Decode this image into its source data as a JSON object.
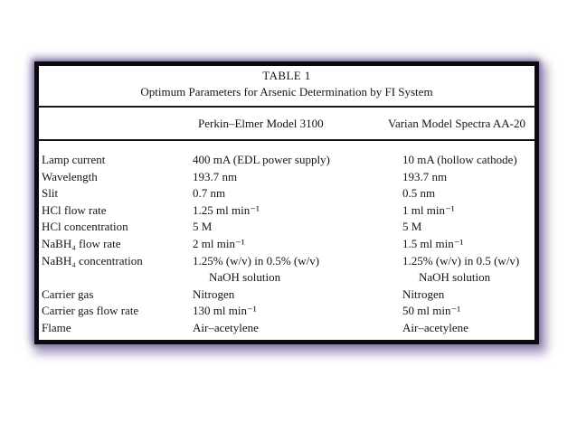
{
  "table": {
    "title": "TABLE 1",
    "subtitle": "Optimum Parameters for Arsenic Determination by FI System",
    "columns": {
      "instrument1": "Perkin–Elmer Model 3100",
      "instrument2": "Varian Model Spectra AA-20"
    },
    "rows": [
      {
        "param": "Lamp current",
        "pe": "400 mA (EDL power supply)",
        "varian": "10 mA (hollow cathode)"
      },
      {
        "param": "Wavelength",
        "pe": "193.7 nm",
        "varian": "193.7 nm"
      },
      {
        "param": "Slit",
        "pe": "0.7 nm",
        "varian": "0.5 nm"
      },
      {
        "param": "HCl flow rate",
        "pe": "1.25 ml min⁻¹",
        "varian": "1 ml min⁻¹"
      },
      {
        "param": "HCl concentration",
        "pe": "5 M",
        "varian": "5 M"
      },
      {
        "param": "NaBH₄ flow rate",
        "pe": "2 ml min⁻¹",
        "varian": "1.5 ml min⁻¹"
      },
      {
        "param": "NaBH₄ concentration",
        "pe": "1.25% (w/v) in 0.5% (w/v)",
        "varian": "1.25% (w/v) in 0.5 (w/v)"
      },
      {
        "param": "",
        "pe": "NaOH solution",
        "varian": "NaOH solution"
      },
      {
        "param": "Carrier gas",
        "pe": "Nitrogen",
        "varian": "Nitrogen"
      },
      {
        "param": "Carrier gas flow rate",
        "pe": "130 ml min⁻¹",
        "varian": "50 ml min⁻¹"
      },
      {
        "param": "Flame",
        "pe": "Air–acetylene",
        "varian": "Air–acetylene"
      }
    ]
  },
  "colors": {
    "frame_border": "#0a0a10",
    "glow": "#9c89ba",
    "text": "#141414",
    "background": "#ffffff"
  }
}
